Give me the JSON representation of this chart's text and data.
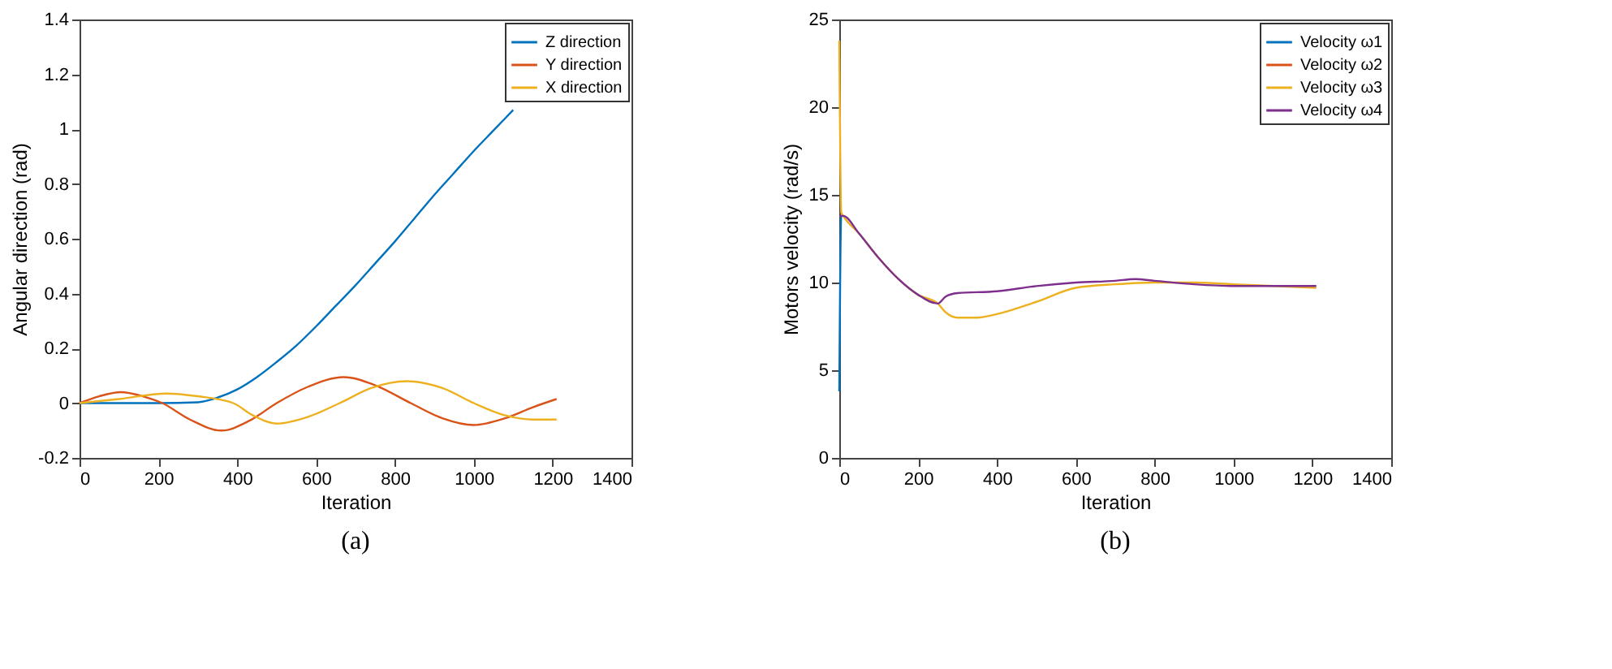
{
  "chart_data": [
    {
      "type": "line",
      "title": "(a)",
      "xlabel": "Iteration",
      "ylabel": "Angular direction (rad)",
      "xlim": [
        0,
        1400
      ],
      "xticks": [
        0,
        200,
        400,
        600,
        800,
        1000,
        1200,
        1400
      ],
      "ylim": [
        -0.2,
        1.4
      ],
      "yticks": [
        -0.2,
        0,
        0.2,
        0.4,
        0.6,
        0.8,
        1,
        1.2,
        1.4
      ],
      "grid": false,
      "legend": "top right",
      "marker": "none",
      "line_style": "solid",
      "series": [
        {
          "name": "Z direction",
          "color": "#0072bd",
          "x": [
            0,
            100,
            200,
            300,
            350,
            400,
            450,
            500,
            550,
            600,
            650,
            700,
            750,
            800,
            850,
            900,
            950,
            1000,
            1050,
            1100
          ],
          "values": [
            0,
            0,
            0,
            0.003,
            0.02,
            0.05,
            0.095,
            0.15,
            0.21,
            0.28,
            0.355,
            0.43,
            0.51,
            0.59,
            0.675,
            0.76,
            0.84,
            0.92,
            0.995,
            1.07
          ]
        },
        {
          "name": "Y direction",
          "color": "#d95319",
          "x": [
            0,
            50,
            105,
            160,
            210,
            280,
            360,
            430,
            500,
            580,
            670,
            750,
            840,
            920,
            1000,
            1080,
            1150,
            1210
          ],
          "values": [
            0,
            0.025,
            0.04,
            0.025,
            0,
            -0.06,
            -0.1,
            -0.065,
            0,
            0.06,
            0.095,
            0.065,
            0,
            -0.055,
            -0.08,
            -0.055,
            -0.015,
            0.015
          ]
        },
        {
          "name": "X direction",
          "color": "#edb120",
          "x": [
            0,
            100,
            220,
            300,
            390,
            440,
            500,
            580,
            660,
            740,
            830,
            920,
            1000,
            1080,
            1150,
            1210
          ],
          "values": [
            0,
            0.015,
            0.035,
            0.025,
            0,
            -0.045,
            -0.075,
            -0.05,
            0,
            0.055,
            0.08,
            0.055,
            0,
            -0.045,
            -0.06,
            -0.06
          ]
        }
      ]
    },
    {
      "type": "line",
      "title": "(b)",
      "xlabel": "Iteration",
      "ylabel": "Motors velocity (rad/s)",
      "xlim": [
        0,
        1400
      ],
      "xticks": [
        0,
        200,
        400,
        600,
        800,
        1000,
        1200,
        1400
      ],
      "ylim": [
        0,
        25
      ],
      "yticks": [
        0,
        5,
        10,
        15,
        20,
        25
      ],
      "grid": false,
      "legend": "top right",
      "marker": "none",
      "line_style": "solid",
      "series": [
        {
          "name": "Velocity ω1",
          "color": "#0072bd",
          "x": [
            0,
            5,
            10
          ],
          "values": [
            3.8,
            13.8,
            13.8
          ]
        },
        {
          "name": "Velocity ω2",
          "color": "#d95319"
        },
        {
          "name": "Velocity ω3",
          "color": "#edb120",
          "x": [
            0,
            5,
            10,
            50,
            100,
            150,
            200,
            250,
            270,
            300,
            350,
            400,
            500,
            600,
            700,
            800,
            900,
            1000,
            1100,
            1210
          ],
          "values": [
            23.8,
            14.0,
            13.8,
            12.8,
            11.4,
            10.2,
            9.3,
            8.8,
            8.3,
            8.0,
            8.0,
            8.2,
            8.9,
            9.7,
            9.9,
            10.0,
            10.0,
            9.9,
            9.8,
            9.7
          ]
        },
        {
          "name": "Velocity ω4",
          "color": "#7e2f8e",
          "x": [
            0,
            10,
            50,
            100,
            150,
            200,
            250,
            270,
            300,
            400,
            500,
            600,
            700,
            750,
            800,
            900,
            1000,
            1100,
            1210
          ],
          "values": [
            13.8,
            13.8,
            12.8,
            11.4,
            10.2,
            9.3,
            8.8,
            9.2,
            9.4,
            9.5,
            9.8,
            10.0,
            10.1,
            10.2,
            10.1,
            9.9,
            9.8,
            9.8,
            9.8
          ]
        }
      ]
    }
  ]
}
